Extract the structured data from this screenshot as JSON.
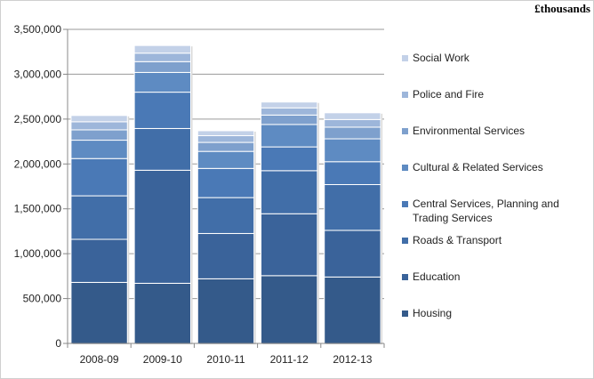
{
  "unit_label": "£thousands",
  "chart_data": {
    "type": "bar",
    "stacked": true,
    "categories": [
      "2008-09",
      "2009-10",
      "2010-11",
      "2011-12",
      "2012-13"
    ],
    "ylim": [
      0,
      3500000
    ],
    "yticks": [
      0,
      500000,
      1000000,
      1500000,
      2000000,
      2500000,
      3000000,
      3500000
    ],
    "ytick_labels": [
      "0",
      "500,000",
      "1,000,000",
      "1,500,000",
      "2,000,000",
      "2,500,000",
      "3,000,000",
      "3,500,000"
    ],
    "grid": true,
    "legend_position": "right",
    "series": [
      {
        "name": "Housing",
        "color": "#345a8a",
        "values": [
          680000,
          670000,
          720000,
          755000,
          740000
        ]
      },
      {
        "name": "Education",
        "color": "#3a639a",
        "values": [
          480000,
          1260000,
          505000,
          690000,
          520000
        ]
      },
      {
        "name": "Roads & Transport",
        "color": "#416ea8",
        "values": [
          485000,
          465000,
          400000,
          480000,
          510000
        ]
      },
      {
        "name": "Central Services, Planning and Trading Services",
        "color": "#4a79b6",
        "values": [
          415000,
          405000,
          325000,
          265000,
          255000
        ]
      },
      {
        "name": "Cultural & Related Services",
        "color": "#5e8bc2",
        "values": [
          205000,
          220000,
          190000,
          250000,
          255000
        ]
      },
      {
        "name": "Environmental Services",
        "color": "#7ea0cd",
        "values": [
          115000,
          120000,
          100000,
          105000,
          130000
        ]
      },
      {
        "name": "Police and Fire",
        "color": "#9db6da",
        "values": [
          90000,
          95000,
          75000,
          80000,
          85000
        ]
      },
      {
        "name": "Social Work",
        "color": "#c3d1e8",
        "values": [
          70000,
          85000,
          55000,
          65000,
          75000
        ]
      }
    ]
  }
}
